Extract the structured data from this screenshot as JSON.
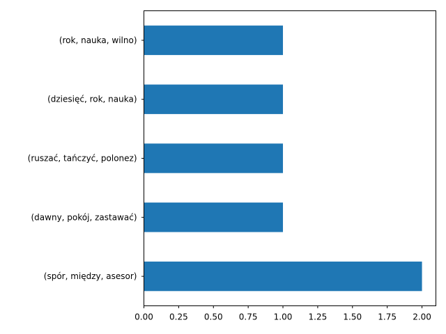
{
  "chart_data": {
    "type": "bar",
    "orientation": "horizontal",
    "categories": [
      "(rok, nauka, wilno)",
      "(dziesięć, rok, nauka)",
      "(ruszać, tańczyć, polonez)",
      "(dawny, pokój, zastawać)",
      "(spór, między, asesor)"
    ],
    "values": [
      1,
      1,
      1,
      1,
      2
    ],
    "xlim": [
      0,
      2.1
    ],
    "xticks": [
      0.0,
      0.25,
      0.5,
      0.75,
      1.0,
      1.25,
      1.5,
      1.75,
      2.0
    ],
    "xtick_labels": [
      "0.00",
      "0.25",
      "0.50",
      "0.75",
      "1.00",
      "1.25",
      "1.50",
      "1.75",
      "2.00"
    ],
    "title": "",
    "xlabel": "",
    "ylabel": "",
    "grid": false,
    "bar_color": "#1f77b4"
  }
}
